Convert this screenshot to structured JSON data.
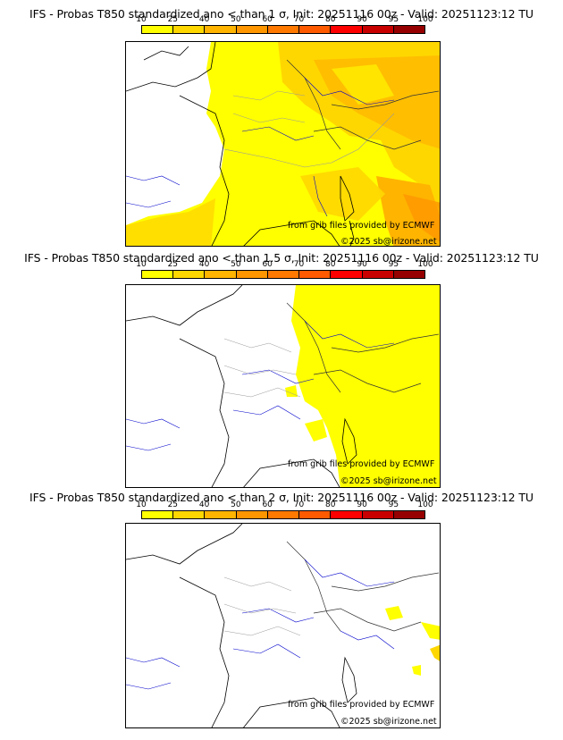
{
  "legend": {
    "ticks": [
      "10",
      "25",
      "40",
      "50",
      "60",
      "70",
      "80",
      "90",
      "95",
      "100"
    ],
    "colors": [
      "#ffff00",
      "#ffd700",
      "#ffb400",
      "#ff9600",
      "#ff7800",
      "#ff5a00",
      "#ff0000",
      "#c80000",
      "#960000"
    ]
  },
  "panels": [
    {
      "title": "IFS - Probas T850  standardized ano < than 1 σ, Init: 20251116 00z - Valid: 20251123:12 TU",
      "source": "from grib files provided by ECMWF",
      "copyright": "©2025 sb@irizone.net",
      "level": "high"
    },
    {
      "title": "IFS - Probas T850  standardized ano < than 1.5 σ, Init: 20251116 00z - Valid: 20251123:12 TU",
      "source": "from grib files provided by ECMWF",
      "copyright": "©2025 sb@irizone.net",
      "level": "medium"
    },
    {
      "title": "IFS - Probas T850  standardized ano < than 2 σ, Init: 20251116 00z - Valid: 20251123:12 TU",
      "source": "from grib files provided by ECMWF",
      "copyright": "©2025 sb@irizone.net",
      "level": "low"
    }
  ],
  "colors": {
    "coast": "#000000",
    "rivers": "#0000cc",
    "borders": "#999999"
  }
}
